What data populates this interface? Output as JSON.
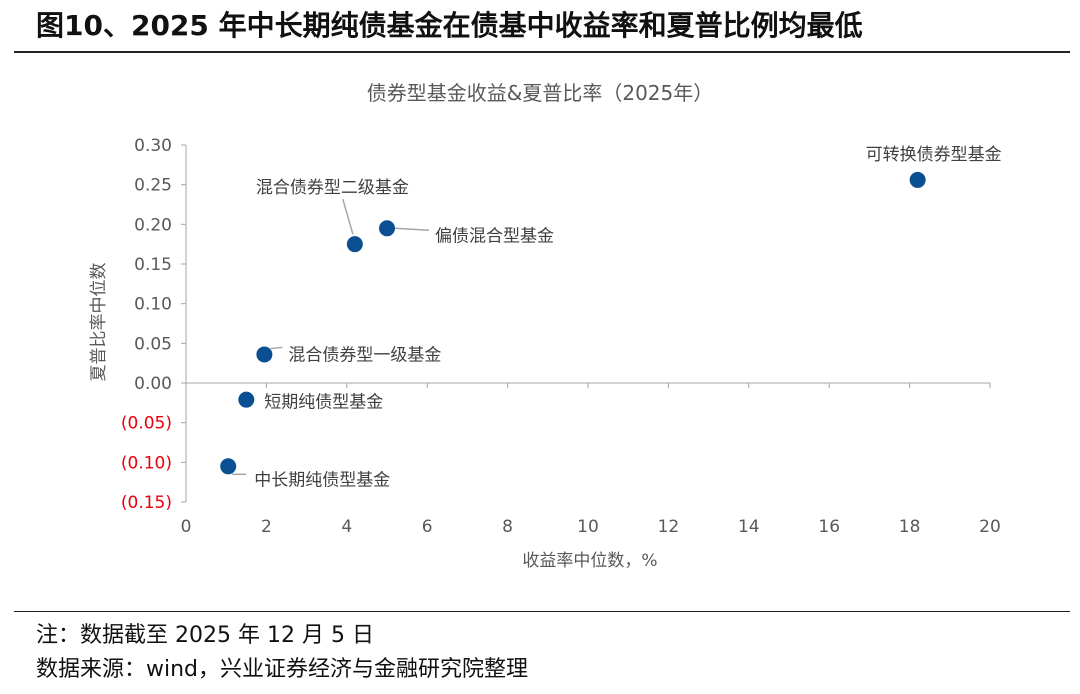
{
  "figure": {
    "title": "图10、2025 年中长期纯债基金在债基中收益率和夏普比例均最低",
    "note": "注：数据截至 2025 年 12 月 5 日",
    "source": "数据来源：wind，兴业证券经济与金融研究院整理"
  },
  "chart_data": {
    "type": "scatter",
    "title": "债券型基金收益&夏普比率（2025年）",
    "xlabel": "收益率中位数，%",
    "ylabel": "夏普比率中位数",
    "xlim": [
      0,
      20
    ],
    "ylim": [
      -0.15,
      0.3
    ],
    "x_ticks": [
      0,
      2,
      4,
      6,
      8,
      10,
      12,
      14,
      16,
      18,
      20
    ],
    "x_tick_labels": [
      "0",
      "2",
      "4",
      "6",
      "8",
      "10",
      "12",
      "14",
      "16",
      "18",
      "20"
    ],
    "y_ticks": [
      0.3,
      0.25,
      0.2,
      0.15,
      0.1,
      0.05,
      0.0,
      -0.05,
      -0.1,
      -0.15
    ],
    "y_tick_labels": [
      "0.30",
      "0.25",
      "0.20",
      "0.15",
      "0.10",
      "0.05",
      "0.00",
      "(0.05)",
      "(0.10)",
      "(0.15)"
    ],
    "negative_tick_color": "#e8000b",
    "point_color": "#0b4f93",
    "grid": false,
    "points": [
      {
        "name": "可转换债券型基金",
        "x": 18.2,
        "y": 0.256
      },
      {
        "name": "偏债混合型基金",
        "x": 5.0,
        "y": 0.195
      },
      {
        "name": "混合债券型二级基金",
        "x": 4.2,
        "y": 0.175
      },
      {
        "name": "混合债券型一级基金",
        "x": 1.95,
        "y": 0.036
      },
      {
        "name": "短期纯债型基金",
        "x": 1.5,
        "y": -0.021
      },
      {
        "name": "中长期纯债型基金",
        "x": 1.05,
        "y": -0.105
      }
    ]
  }
}
